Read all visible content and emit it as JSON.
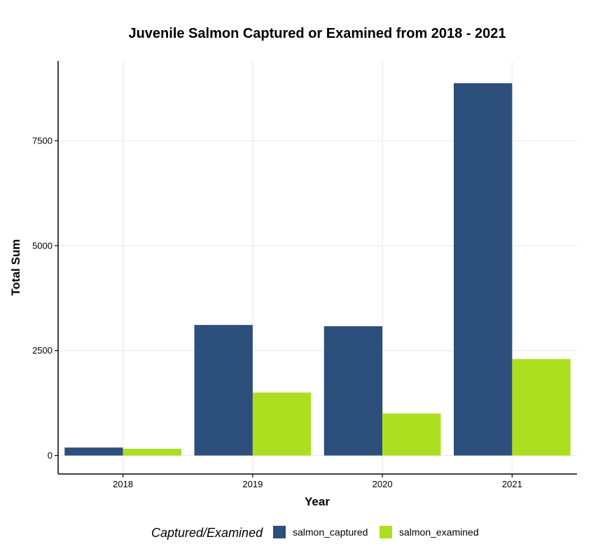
{
  "chart_data": {
    "type": "bar",
    "title": "Juvenile Salmon Captured or Examined from 2018 - 2021",
    "xlabel": "Year",
    "ylabel": "Total Sum",
    "categories": [
      "2018",
      "2019",
      "2020",
      "2021"
    ],
    "series": [
      {
        "name": "salmon_captured",
        "color": "#2c4f7c",
        "values": [
          190,
          3110,
          3080,
          8870
        ]
      },
      {
        "name": "salmon_examined",
        "color": "#acdf20",
        "values": [
          160,
          1500,
          1000,
          2300
        ]
      }
    ],
    "ylim": [
      -440,
      9400
    ],
    "yticks": [
      0,
      2500,
      5000,
      7500
    ],
    "ytick_labels": [
      "0",
      "2500",
      "5000",
      "7500"
    ],
    "grid": true,
    "legend": {
      "title": "Captured/Examined",
      "position": "bottom"
    }
  }
}
